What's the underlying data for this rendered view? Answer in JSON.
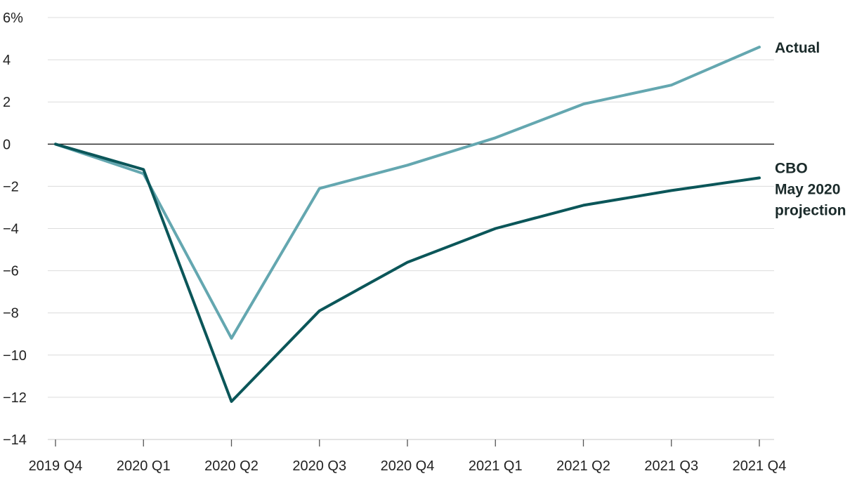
{
  "chart_data": {
    "type": "line",
    "title": "",
    "xlabel": "",
    "ylabel": "",
    "ylim": [
      -14,
      6
    ],
    "yticks": [
      6,
      4,
      2,
      0,
      -2,
      -4,
      -6,
      -8,
      -10,
      -12,
      -14
    ],
    "ytick_labels": [
      "6%",
      "4",
      "2",
      "0",
      "−10",
      "−12",
      "−14"
    ],
    "ytick_labels_all": [
      "6%",
      "4",
      "2",
      "0",
      "−2",
      "−4",
      "−6",
      "−8",
      "−10",
      "−12",
      "−14"
    ],
    "categories": [
      "2019 Q4",
      "2020 Q1",
      "2020 Q2",
      "2020 Q3",
      "2020 Q4",
      "2021 Q1",
      "2021 Q2",
      "2021 Q3",
      "2021 Q4"
    ],
    "grid": true,
    "series": [
      {
        "name": "Actual",
        "label_lines": [
          "Actual"
        ],
        "color": "#64a7b0",
        "values": [
          0,
          -1.4,
          -9.2,
          -2.1,
          -1.0,
          0.3,
          1.9,
          2.8,
          4.6
        ]
      },
      {
        "name": "CBO May 2020 projection",
        "label_lines": [
          "CBO",
          "May 2020",
          "projection"
        ],
        "color": "#0b5659",
        "values": [
          0,
          -1.2,
          -12.2,
          -7.9,
          -5.6,
          -4.0,
          -2.9,
          -2.2,
          -1.6
        ]
      }
    ]
  }
}
